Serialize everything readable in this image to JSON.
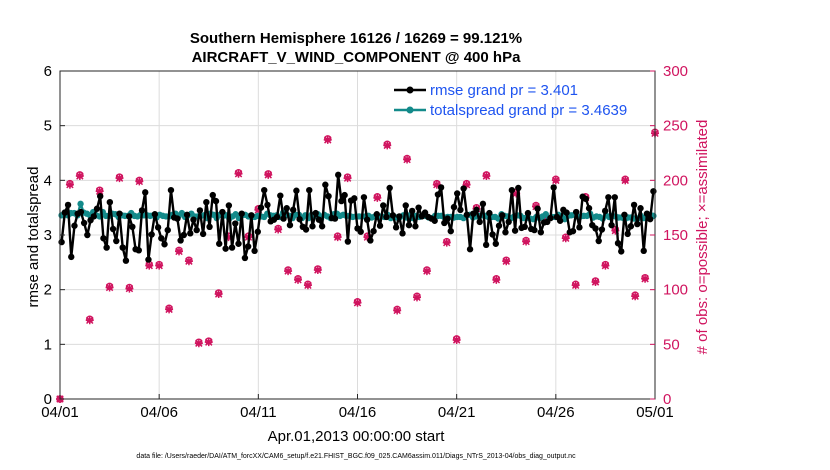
{
  "chart_data": {
    "type": "line",
    "title": "Southern Hemisphere 16126 / 16269 = 99.121%",
    "subtitle": "AIRCRAFT_V_WIND_COMPONENT @ 400 hPa",
    "xlabel": "Apr.01,2013 00:00:00 start",
    "ylabel": "rmse and totalspread",
    "y2label": "# of obs: o=possible; ×=assimilated",
    "footnote": "data file: /Users/raeder/DAI/ATM_forcXX/CAM6_setup/f.e21.FHIST_BGC.f09_025.CAM6assim.011/Diags_NTrS_2013-04/obs_diag_output.nc",
    "xlim": [
      0,
      30
    ],
    "ylim": [
      0,
      6
    ],
    "y2lim": [
      0,
      300
    ],
    "xtick_values": [
      0,
      5,
      10,
      15,
      20,
      25,
      30
    ],
    "xtick_labels": [
      "04/01",
      "04/06",
      "04/11",
      "04/16",
      "04/21",
      "04/26",
      "05/01"
    ],
    "ytick_labels": [
      "0",
      "1",
      "2",
      "3",
      "4",
      "5",
      "6"
    ],
    "y2tick_labels": [
      "0",
      "50",
      "100",
      "150",
      "200",
      "250",
      "300"
    ],
    "grid": true,
    "legend_position": "top-right",
    "series": [
      {
        "name": "rmse grand pr = 3.401",
        "color": "#000000",
        "marker": "circle",
        "axis": "left",
        "values": [
          2.87,
          3.41,
          3.55,
          2.6,
          3.17,
          3.39,
          3.42,
          3.22,
          3.0,
          3.27,
          3.34,
          3.48,
          3.71,
          2.94,
          2.77,
          3.6,
          3.11,
          2.89,
          3.39,
          2.77,
          2.53,
          3.34,
          3.15,
          2.74,
          2.72,
          3.45,
          3.78,
          2.55,
          3.01,
          3.38,
          3.14,
          2.94,
          2.83,
          3.09,
          3.82,
          3.32,
          3.3,
          2.9,
          3.0,
          3.37,
          3.03,
          3.28,
          3.09,
          3.45,
          3.02,
          3.6,
          3.15,
          3.73,
          3.62,
          2.84,
          3.42,
          2.75,
          3.54,
          2.77,
          3.21,
          2.84,
          3.39,
          2.58,
          2.79,
          3.36,
          2.71,
          3.06,
          3.5,
          3.82,
          3.55,
          3.25,
          3.28,
          3.33,
          3.72,
          3.3,
          3.49,
          3.18,
          3.46,
          3.81,
          3.29,
          3.15,
          3.1,
          3.82,
          3.16,
          3.4,
          3.28,
          3.16,
          3.92,
          3.71,
          3.31,
          3.3,
          4.1,
          3.62,
          3.73,
          2.88,
          3.63,
          3.67,
          3.12,
          3.06,
          3.69,
          3.28,
          2.9,
          3.07,
          3.38,
          3.17,
          3.54,
          3.33,
          3.86,
          3.36,
          3.14,
          3.34,
          3.03,
          3.54,
          3.18,
          3.44,
          3.16,
          3.5,
          3.34,
          3.41,
          3.33,
          3.3,
          3.26,
          3.74,
          3.87,
          3.22,
          3.3,
          3.07,
          3.51,
          3.76,
          3.46,
          3.85,
          3.37,
          2.74,
          3.39,
          3.46,
          3.24,
          3.57,
          2.82,
          3.4,
          3.01,
          2.84,
          3.17,
          3.36,
          3.05,
          3.24,
          3.82,
          3.08,
          3.86,
          3.13,
          3.15,
          3.4,
          3.11,
          3.09,
          3.48,
          3.05,
          3.23,
          3.24,
          3.31,
          3.87,
          3.33,
          3.26,
          3.46,
          3.41,
          3.05,
          3.07,
          3.42,
          3.14,
          3.7,
          3.66,
          3.49,
          3.18,
          3.12,
          2.89,
          3.1,
          3.44,
          3.69,
          3.18,
          3.69,
          2.85,
          2.7,
          3.37,
          3.02,
          3.16,
          3.55,
          3.2,
          3.49,
          2.71,
          3.39,
          3.29,
          3.8
        ]
      },
      {
        "name": "totalspread grand pr = 3.4639",
        "color": "#138a8a",
        "marker": "circle",
        "axis": "left",
        "values": [
          3.36,
          3.41,
          3.36,
          3.4,
          3.4,
          3.36,
          3.57,
          3.41,
          3.39,
          3.36,
          3.42,
          3.36,
          3.34,
          3.42,
          3.35,
          3.35,
          3.39,
          3.38,
          3.33,
          3.36,
          3.35,
          3.35,
          3.4,
          3.35,
          3.34,
          3.37,
          3.36,
          3.36,
          3.35,
          3.36,
          3.32,
          3.37,
          3.35,
          3.34,
          3.34,
          3.37,
          3.39,
          3.35,
          3.4,
          3.33,
          3.36,
          3.39,
          3.34,
          3.34,
          3.35,
          3.36,
          3.31,
          3.39,
          3.37,
          3.31,
          3.37,
          3.35,
          3.36,
          3.3,
          3.34,
          3.38,
          3.31,
          3.36,
          3.37,
          3.34,
          3.33,
          3.33,
          3.35,
          3.34,
          3.33,
          3.39,
          3.36,
          3.35,
          3.36,
          3.33,
          3.41,
          3.37,
          3.35,
          3.31,
          3.37,
          3.37,
          3.31,
          3.36,
          3.31,
          3.37,
          3.35,
          3.38,
          3.3,
          3.37,
          3.34,
          3.31,
          3.38,
          3.39,
          3.35,
          3.37,
          3.35,
          3.35,
          3.33,
          3.34,
          3.34,
          3.34,
          3.34,
          3.35,
          3.32,
          3.34,
          3.33,
          3.34,
          3.33,
          3.37,
          3.31,
          3.33,
          3.32,
          3.33,
          3.36,
          3.32,
          3.36,
          3.31,
          3.35,
          3.33,
          3.35,
          3.35,
          3.32,
          3.31,
          3.35,
          3.35,
          3.35,
          3.32,
          3.33,
          3.33,
          3.32,
          3.33,
          3.33,
          3.31,
          3.36,
          3.37,
          3.32,
          3.34,
          3.35,
          3.36,
          3.35,
          3.32,
          3.33,
          3.33,
          3.3,
          3.38,
          3.35,
          3.34,
          3.31,
          3.34,
          3.36,
          3.35,
          3.31,
          3.32,
          3.3,
          3.29,
          3.33,
          3.31,
          3.34,
          3.38,
          3.31,
          3.33,
          3.33,
          3.37,
          3.34,
          3.29,
          3.35,
          3.36,
          3.37,
          3.34,
          3.34,
          3.35,
          3.35,
          3.39,
          3.32,
          3.34,
          3.33,
          3.3,
          3.36,
          3.33,
          3.35,
          3.34,
          3.32,
          3.32,
          3.29,
          3.32,
          3.32,
          3.3,
          3.3,
          3.35,
          3.31,
          3.34,
          3.37,
          3.35
        ]
      },
      {
        "name": "obs possible",
        "color": "#d0145f",
        "marker": "o",
        "axis": "right",
        "x": [
          0,
          0.5,
          1,
          1.5,
          2,
          2.5,
          3,
          3.5,
          4,
          4.5,
          5,
          5.5,
          6,
          6.5,
          7,
          7.5,
          8,
          8.5,
          9,
          9.5,
          10,
          10.5,
          11,
          11.5,
          12,
          12.5,
          13,
          13.5,
          14,
          14.5,
          15,
          15.5,
          16,
          16.5,
          17,
          17.5,
          18,
          18.5,
          19,
          19.5,
          20,
          20.5,
          21,
          21.5,
          22,
          22.5,
          23,
          23.5,
          24,
          24.5,
          25,
          25.5,
          26,
          26.5,
          27,
          27.5,
          28,
          28.5,
          29,
          29.5,
          30
        ],
        "values": [
          0,
          197,
          205,
          73,
          191,
          103,
          203,
          102,
          200,
          123,
          123,
          83,
          136,
          127,
          52,
          53,
          97,
          149,
          207,
          149,
          174,
          206,
          156,
          118,
          110,
          105,
          119,
          238,
          149,
          203,
          89,
          149,
          185,
          233,
          82,
          220,
          94,
          118,
          197,
          144,
          55,
          197,
          175,
          205,
          110,
          127,
          189,
          145,
          177,
          166,
          201,
          148,
          105,
          185,
          108,
          123,
          155,
          201,
          95,
          111,
          244
        ]
      },
      {
        "name": "obs assimilated",
        "color": "#d0145f",
        "marker": "x",
        "axis": "right",
        "x": [
          0,
          0.5,
          1,
          1.5,
          2,
          2.5,
          3,
          3.5,
          4,
          4.5,
          5,
          5.5,
          6,
          6.5,
          7,
          7.5,
          8,
          8.5,
          9,
          9.5,
          10,
          10.5,
          11,
          11.5,
          12,
          12.5,
          13,
          13.5,
          14,
          14.5,
          15,
          15.5,
          16,
          16.5,
          17,
          17.5,
          18,
          18.5,
          19,
          19.5,
          20,
          20.5,
          21,
          21.5,
          22,
          22.5,
          23,
          23.5,
          24,
          24.5,
          25,
          25.5,
          26,
          26.5,
          27,
          27.5,
          28,
          28.5,
          29,
          29.5,
          30
        ],
        "values": [
          0,
          196,
          204,
          72,
          190,
          102,
          202,
          101,
          199,
          122,
          122,
          82,
          135,
          126,
          51,
          52,
          96,
          148,
          206,
          148,
          173,
          205,
          155,
          117,
          109,
          104,
          118,
          237,
          148,
          202,
          88,
          148,
          184,
          232,
          81,
          219,
          93,
          117,
          196,
          143,
          54,
          196,
          174,
          204,
          109,
          126,
          188,
          144,
          176,
          165,
          200,
          147,
          104,
          184,
          107,
          122,
          154,
          200,
          94,
          110,
          243
        ]
      }
    ]
  }
}
